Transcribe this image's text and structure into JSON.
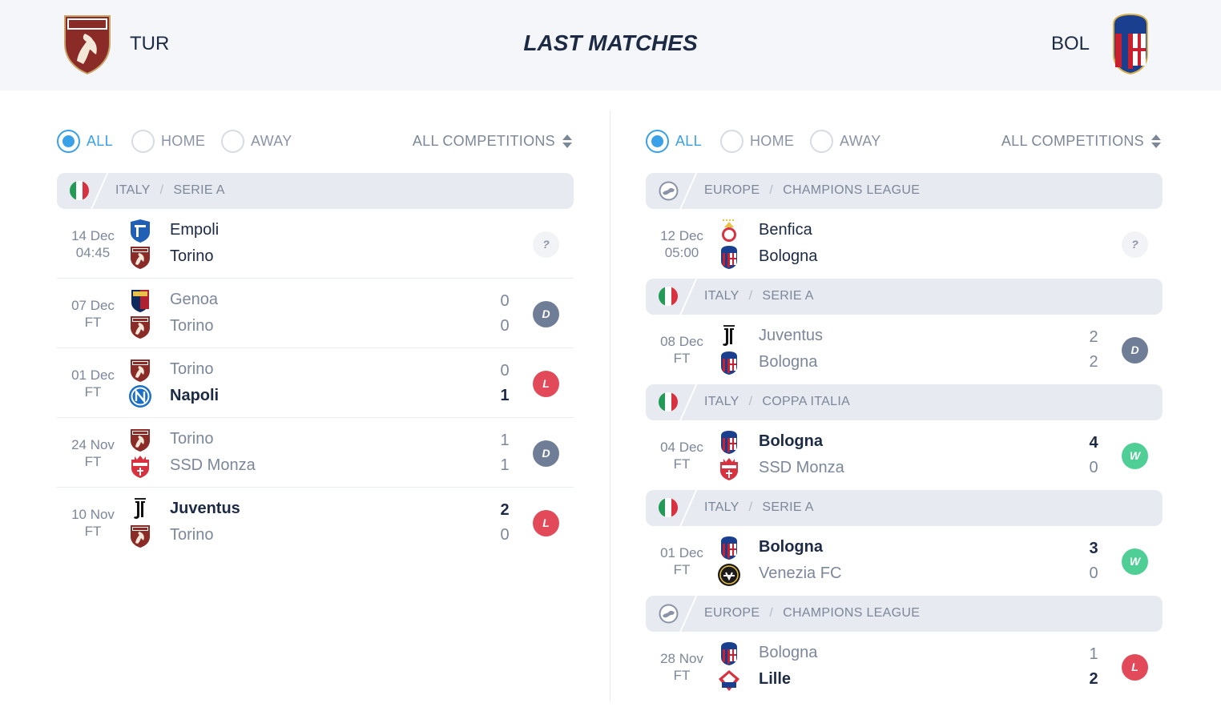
{
  "header": {
    "title": "LAST MATCHES",
    "home_team": {
      "abbr": "TUR",
      "crest": "torino-crest"
    },
    "away_team": {
      "abbr": "BOL",
      "crest": "bologna-crest"
    }
  },
  "left_panel": {
    "filters": {
      "options": [
        "ALL",
        "HOME",
        "AWAY"
      ],
      "selected": "ALL",
      "competition": "ALL COMPETITIONS"
    },
    "league": {
      "country": "ITALY",
      "competition": "SERIE A",
      "icon": "italy-flag"
    },
    "matches": [
      {
        "date": "14 Dec",
        "status": "04:45",
        "home": "Empoli",
        "away": "Torino",
        "home_crest": "empoli",
        "away_crest": "torino",
        "home_score": "",
        "away_score": "",
        "result": "?"
      },
      {
        "date": "07 Dec",
        "status": "FT",
        "home": "Genoa",
        "away": "Torino",
        "home_crest": "genoa",
        "away_crest": "torino",
        "home_score": "0",
        "away_score": "0",
        "result": "D"
      },
      {
        "date": "01 Dec",
        "status": "FT",
        "home": "Torino",
        "away": "Napoli",
        "home_crest": "torino",
        "away_crest": "napoli",
        "home_score": "0",
        "away_score": "1",
        "result": "L"
      },
      {
        "date": "24 Nov",
        "status": "FT",
        "home": "Torino",
        "away": "SSD Monza",
        "home_crest": "torino",
        "away_crest": "monza",
        "home_score": "1",
        "away_score": "1",
        "result": "D"
      },
      {
        "date": "10 Nov",
        "status": "FT",
        "home": "Juventus",
        "away": "Torino",
        "home_crest": "juventus",
        "away_crest": "torino",
        "home_score": "2",
        "away_score": "0",
        "result": "L"
      }
    ]
  },
  "right_panel": {
    "filters": {
      "options": [
        "ALL",
        "HOME",
        "AWAY"
      ],
      "selected": "ALL",
      "competition": "ALL COMPETITIONS"
    },
    "groups": [
      {
        "league": {
          "country": "EUROPE",
          "competition": "CHAMPIONS LEAGUE",
          "icon": "europe-globe"
        },
        "match": {
          "date": "12 Dec",
          "status": "05:00",
          "home": "Benfica",
          "away": "Bologna",
          "home_crest": "benfica",
          "away_crest": "bologna",
          "home_score": "",
          "away_score": "",
          "result": "?"
        }
      },
      {
        "league": {
          "country": "ITALY",
          "competition": "SERIE A",
          "icon": "italy-flag"
        },
        "match": {
          "date": "08 Dec",
          "status": "FT",
          "home": "Juventus",
          "away": "Bologna",
          "home_crest": "juventus",
          "away_crest": "bologna",
          "home_score": "2",
          "away_score": "2",
          "result": "D"
        }
      },
      {
        "league": {
          "country": "ITALY",
          "competition": "COPPA ITALIA",
          "icon": "italy-flag"
        },
        "match": {
          "date": "04 Dec",
          "status": "FT",
          "home": "Bologna",
          "away": "SSD Monza",
          "home_crest": "bologna",
          "away_crest": "monza",
          "home_score": "4",
          "away_score": "0",
          "result": "W"
        }
      },
      {
        "league": {
          "country": "ITALY",
          "competition": "SERIE A",
          "icon": "italy-flag"
        },
        "match": {
          "date": "01 Dec",
          "status": "FT",
          "home": "Bologna",
          "away": "Venezia FC",
          "home_crest": "bologna",
          "away_crest": "venezia",
          "home_score": "3",
          "away_score": "0",
          "result": "W"
        }
      },
      {
        "league": {
          "country": "EUROPE",
          "competition": "CHAMPIONS LEAGUE",
          "icon": "europe-globe"
        },
        "match": {
          "date": "28 Nov",
          "status": "FT",
          "home": "Bologna",
          "away": "Lille",
          "home_crest": "bologna",
          "away_crest": "lille",
          "home_score": "1",
          "away_score": "2",
          "result": "L"
        }
      }
    ]
  },
  "colors": {
    "accent": "#3aa0e8",
    "win": "#4fcf96",
    "loss": "#e24a5a",
    "draw": "#6f7e96",
    "text": "#1d2a44",
    "muted": "#7c879a"
  }
}
